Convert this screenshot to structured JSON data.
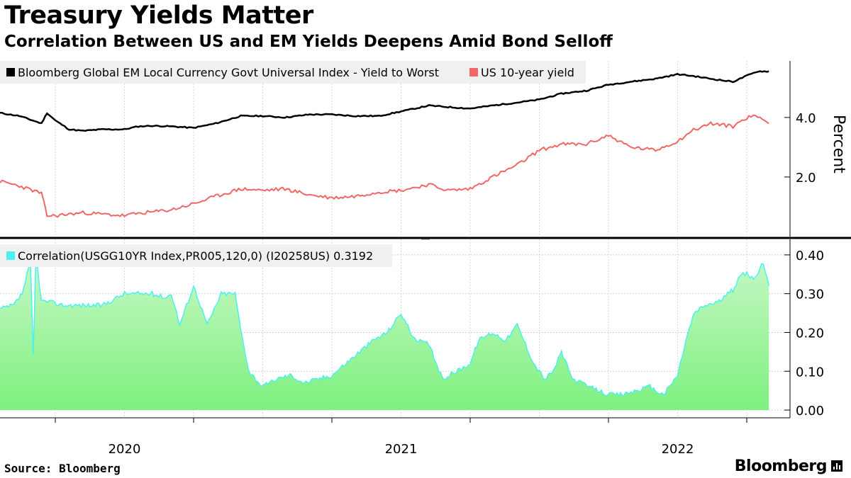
{
  "title": "Treasury Yields Matter",
  "subtitle": "Correlation Between US and EM Yields Deepens Amid Bond Selloff",
  "source": "Source: Bloomberg",
  "brand": "Bloomberg",
  "colors": {
    "em_line": "#000000",
    "us_line": "#f06767",
    "corr_line": "#4cf0f0",
    "corr_fill_top": "#c8f8c8",
    "corr_fill_bottom": "#7ef07e",
    "grid": "#d0d0d0",
    "legend_bg": "#f0f0f0"
  },
  "chart_data": [
    {
      "type": "line",
      "title": "",
      "xlabel": "",
      "ylabel": "Percent",
      "ylim": [
        0.0,
        5.9
      ],
      "yticks": [
        "4.0",
        "2.0"
      ],
      "xticks": [
        "2020",
        "2021",
        "2022"
      ],
      "legend": "top-left",
      "grid": "vertical",
      "x": [
        2019.55,
        2019.62,
        2019.7,
        2019.72,
        2019.75,
        2019.8,
        2019.85,
        2019.92,
        2020.0,
        2020.05,
        2020.1,
        2020.17,
        2020.25,
        2020.33,
        2020.42,
        2020.5,
        2020.58,
        2020.67,
        2020.75,
        2020.83,
        2020.92,
        2021.0,
        2021.05,
        2021.1,
        2021.17,
        2021.25,
        2021.33,
        2021.42,
        2021.5,
        2021.58,
        2021.67,
        2021.75,
        2021.83,
        2021.92,
        2022.0,
        2022.05,
        2022.12,
        2022.2,
        2022.25,
        2022.29,
        2022.33
      ],
      "series": [
        {
          "name": "Bloomberg Global EM Local Currency Govt Universal Index - Yield to Worst",
          "values": [
            4.15,
            4.05,
            3.8,
            4.15,
            3.9,
            3.6,
            3.55,
            3.6,
            3.6,
            3.7,
            3.72,
            3.7,
            3.65,
            3.8,
            4.05,
            4.05,
            4.0,
            4.1,
            4.1,
            4.05,
            4.05,
            4.2,
            4.3,
            4.4,
            4.35,
            4.3,
            4.4,
            4.5,
            4.6,
            4.8,
            4.9,
            5.1,
            5.2,
            5.3,
            5.45,
            5.4,
            5.3,
            5.2,
            5.4,
            5.55,
            5.55
          ]
        },
        {
          "name": "US 10-year yield",
          "values": [
            1.85,
            1.7,
            1.45,
            0.7,
            0.7,
            0.75,
            0.8,
            0.75,
            0.7,
            0.78,
            0.82,
            0.9,
            1.1,
            1.35,
            1.6,
            1.55,
            1.6,
            1.4,
            1.3,
            1.35,
            1.5,
            1.55,
            1.65,
            1.75,
            1.55,
            1.6,
            2.0,
            2.4,
            2.9,
            3.1,
            3.1,
            3.4,
            3.0,
            2.9,
            3.2,
            3.55,
            3.8,
            3.7,
            4.0,
            4.05,
            3.8
          ]
        }
      ]
    },
    {
      "type": "area",
      "title": "",
      "xlabel": "",
      "ylabel": "",
      "ylim": [
        -0.02,
        0.44
      ],
      "yticks": [
        "0.40",
        "0.30",
        "0.20",
        "0.10",
        "0.00"
      ],
      "xticks": [
        "2020",
        "2021",
        "2022"
      ],
      "legend": "top-left",
      "grid": "horizontal",
      "x": [
        2019.55,
        2019.6,
        2019.63,
        2019.66,
        2019.67,
        2019.68,
        2019.7,
        2019.72,
        2019.78,
        2019.85,
        2019.92,
        2020.0,
        2020.1,
        2020.15,
        2020.17,
        2020.2,
        2020.25,
        2020.3,
        2020.35,
        2020.4,
        2020.42,
        2020.45,
        2020.5,
        2020.55,
        2020.6,
        2020.65,
        2020.7,
        2020.75,
        2020.8,
        2020.85,
        2020.9,
        2020.95,
        2021.0,
        2021.05,
        2021.1,
        2021.15,
        2021.2,
        2021.25,
        2021.28,
        2021.33,
        2021.38,
        2021.42,
        2021.45,
        2021.48,
        2021.52,
        2021.55,
        2021.58,
        2021.62,
        2021.68,
        2021.75,
        2021.8,
        2021.85,
        2021.9,
        2021.92,
        2021.95,
        2022.0,
        2022.03,
        2022.06,
        2022.1,
        2022.15,
        2022.2,
        2022.23,
        2022.25,
        2022.28,
        2022.31,
        2022.33
      ],
      "series": [
        {
          "name": "Correlation(USGG10YR Index,PR005,120,0) (I20258US) 0.3192",
          "values": [
            0.26,
            0.27,
            0.3,
            0.38,
            0.14,
            0.4,
            0.28,
            0.28,
            0.27,
            0.27,
            0.27,
            0.3,
            0.3,
            0.29,
            0.3,
            0.22,
            0.32,
            0.22,
            0.3,
            0.3,
            0.21,
            0.1,
            0.06,
            0.08,
            0.09,
            0.07,
            0.08,
            0.09,
            0.12,
            0.15,
            0.18,
            0.2,
            0.25,
            0.18,
            0.17,
            0.08,
            0.1,
            0.12,
            0.18,
            0.2,
            0.18,
            0.22,
            0.17,
            0.12,
            0.08,
            0.1,
            0.15,
            0.08,
            0.06,
            0.04,
            0.04,
            0.05,
            0.06,
            0.05,
            0.04,
            0.09,
            0.18,
            0.25,
            0.27,
            0.28,
            0.31,
            0.35,
            0.35,
            0.34,
            0.38,
            0.32
          ]
        }
      ]
    }
  ]
}
